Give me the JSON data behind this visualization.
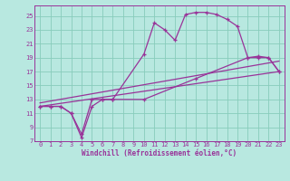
{
  "xlabel": "Windchill (Refroidissement éolien,°C)",
  "bg_color": "#b8e8e0",
  "grid_color": "#88ccbb",
  "line_color": "#993399",
  "xlim": [
    -0.5,
    23.5
  ],
  "ylim": [
    7,
    26.5
  ],
  "yticks": [
    7,
    9,
    11,
    13,
    15,
    17,
    19,
    21,
    23,
    25
  ],
  "xticks": [
    0,
    1,
    2,
    3,
    4,
    5,
    6,
    7,
    8,
    9,
    10,
    11,
    12,
    13,
    14,
    15,
    16,
    17,
    18,
    19,
    20,
    21,
    22,
    23
  ],
  "line1_x": [
    0,
    1,
    2,
    3,
    4,
    5,
    6,
    7,
    10,
    11,
    12,
    13,
    14,
    15,
    16,
    17,
    18,
    19,
    20,
    21,
    22,
    23
  ],
  "line1_y": [
    12,
    12,
    12,
    11,
    8,
    13,
    13,
    13,
    19.5,
    24,
    23,
    21.5,
    25.2,
    25.5,
    25.5,
    25.2,
    24.5,
    23.5,
    19,
    19.2,
    19,
    17
  ],
  "line2_x": [
    0,
    1,
    2,
    3,
    4,
    5,
    6,
    7,
    10,
    15,
    20,
    21,
    22,
    23
  ],
  "line2_y": [
    12,
    12,
    12,
    11,
    7.5,
    12,
    13,
    13,
    13,
    16,
    19,
    19,
    19,
    17
  ],
  "line3_x": [
    0,
    23
  ],
  "line3_y": [
    12,
    17
  ],
  "line4_x": [
    0,
    23
  ],
  "line4_y": [
    12.5,
    18.5
  ]
}
